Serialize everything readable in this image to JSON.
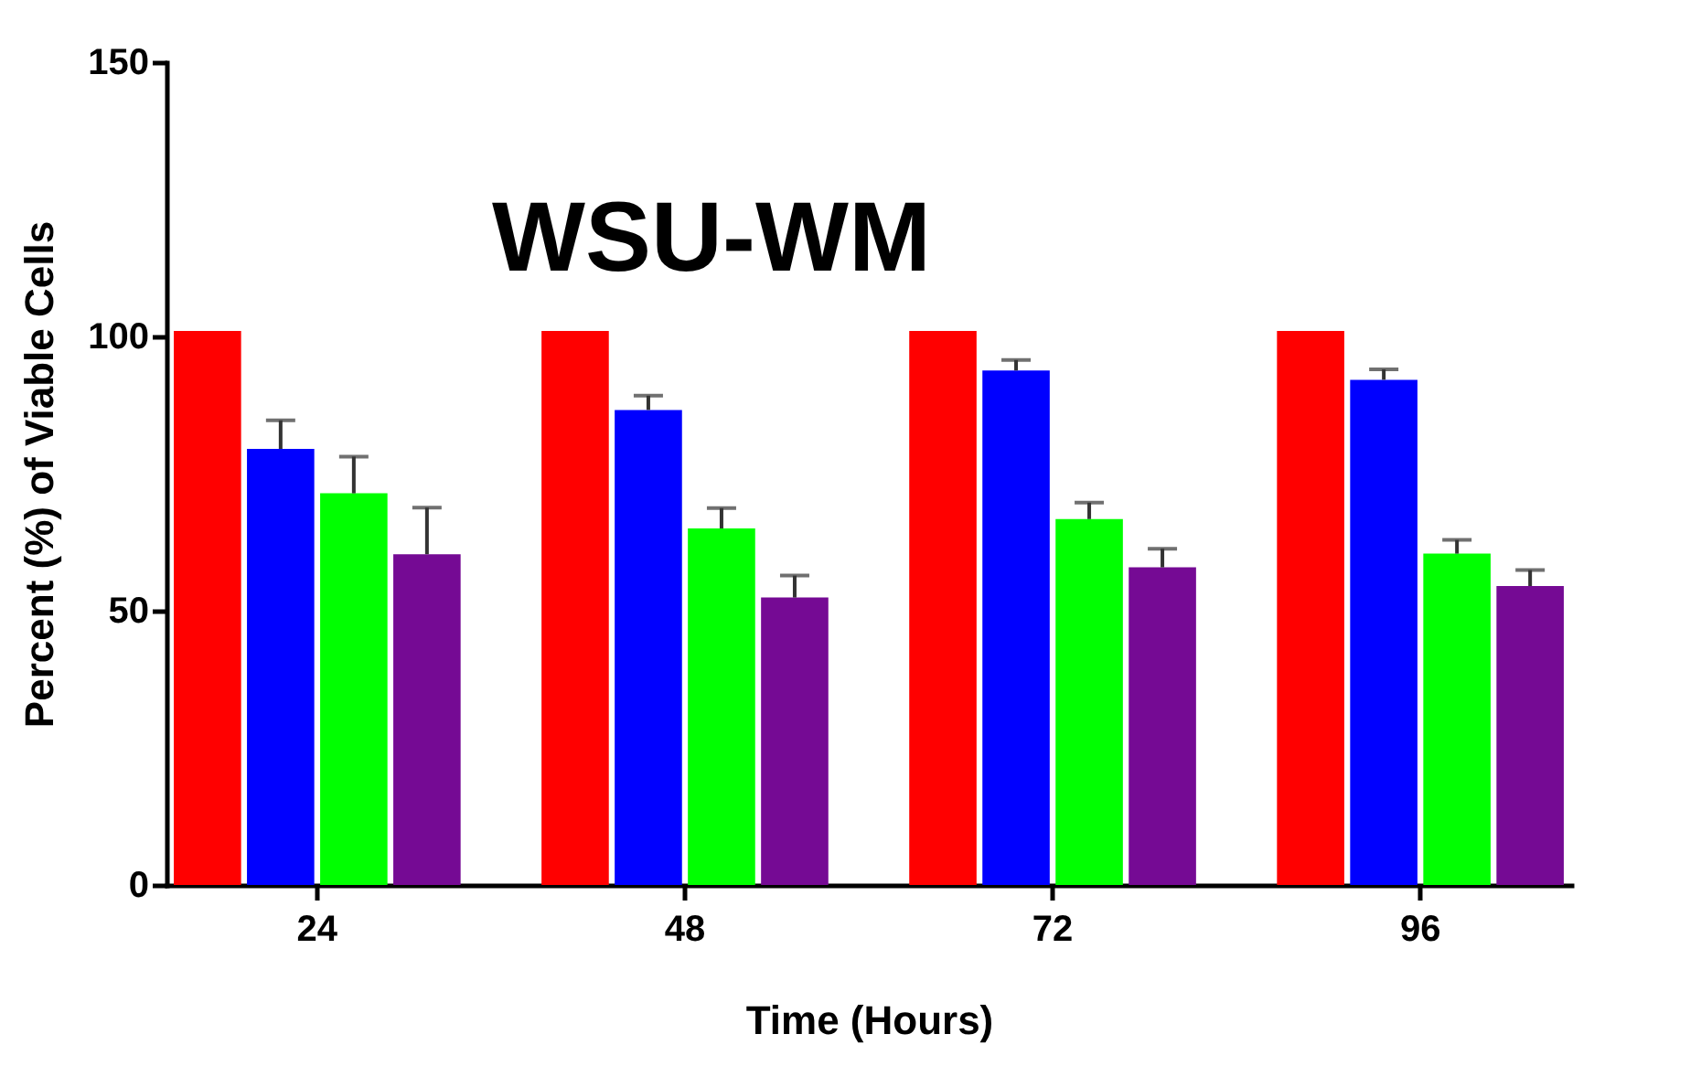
{
  "chart_data": {
    "type": "bar",
    "title": "WSU-WM",
    "xlabel": "Time (Hours)",
    "ylabel": "Percent (%) of Viable Cells",
    "categories": [
      "24",
      "48",
      "72",
      "96"
    ],
    "ylim": [
      0,
      150
    ],
    "yticks": [
      0,
      50,
      100,
      150
    ],
    "grid": false,
    "series": [
      {
        "color": "#ff0000",
        "values": [
          101,
          101,
          101,
          101
        ]
      },
      {
        "color": "#0000ff",
        "values": [
          79.5,
          86.6,
          93.8,
          92.1
        ],
        "errors": [
          [
            79.5,
            84.7
          ],
          [
            86.6,
            89.2
          ],
          [
            93.8,
            95.7
          ],
          [
            92.1,
            94
          ]
        ]
      },
      {
        "color": "#00ff00",
        "values": [
          71.4,
          65,
          66.7,
          60.4
        ],
        "errors": [
          [
            71.4,
            78.1
          ],
          [
            65,
            68.7
          ],
          [
            66.7,
            69.7
          ],
          [
            60.4,
            62.9
          ]
        ]
      },
      {
        "color": "#750a94",
        "values": [
          60.3,
          52.4,
          57.9,
          54.5
        ],
        "errors": [
          [
            60.3,
            68.8
          ],
          [
            52.4,
            56.4
          ],
          [
            57.9,
            61.3
          ],
          [
            54.5,
            57.4
          ]
        ]
      }
    ]
  }
}
